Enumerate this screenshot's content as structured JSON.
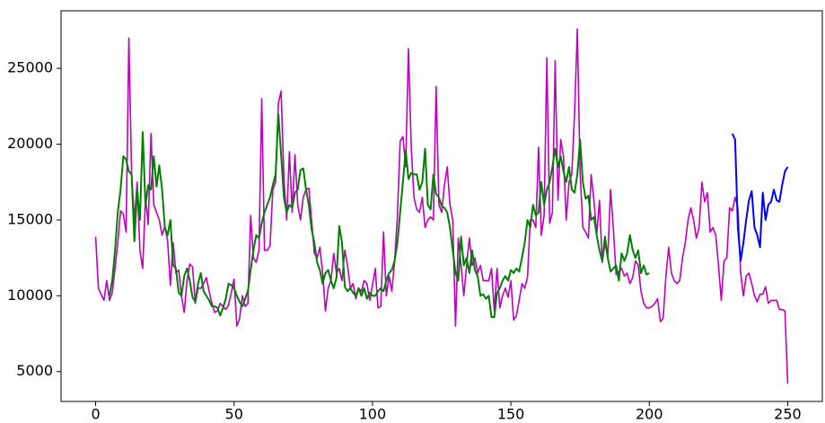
{
  "chart_data": {
    "type": "line",
    "x": [
      0,
      1,
      2,
      3,
      4,
      5,
      6,
      7,
      8,
      9,
      10,
      11,
      12,
      13,
      14,
      15,
      16,
      17,
      18,
      19,
      20,
      21,
      22,
      23,
      24,
      25,
      26,
      27,
      28,
      29,
      30,
      31,
      32,
      33,
      34,
      35,
      36,
      37,
      38,
      39,
      40,
      41,
      42,
      43,
      44,
      45,
      46,
      47,
      48,
      49,
      50,
      51,
      52,
      53,
      54,
      55,
      56,
      57,
      58,
      59,
      60,
      61,
      62,
      63,
      64,
      65,
      66,
      67,
      68,
      69,
      70,
      71,
      72,
      73,
      74,
      75,
      76,
      77,
      78,
      79,
      80,
      81,
      82,
      83,
      84,
      85,
      86,
      87,
      88,
      89,
      90,
      91,
      92,
      93,
      94,
      95,
      96,
      97,
      98,
      99,
      100,
      101,
      102,
      103,
      104,
      105,
      106,
      107,
      108,
      109,
      110,
      111,
      112,
      113,
      114,
      115,
      116,
      117,
      118,
      119,
      120,
      121,
      122,
      123,
      124,
      125,
      126,
      127,
      128,
      129,
      130,
      131,
      132,
      133,
      134,
      135,
      136,
      137,
      138,
      139,
      140,
      141,
      142,
      143,
      144,
      145,
      146,
      147,
      148,
      149,
      150,
      151,
      152,
      153,
      154,
      155,
      156,
      157,
      158,
      159,
      160,
      161,
      162,
      163,
      164,
      165,
      166,
      167,
      168,
      169,
      170,
      171,
      172,
      173,
      174,
      175,
      176,
      177,
      178,
      179,
      180,
      181,
      182,
      183,
      184,
      185,
      186,
      187,
      188,
      189,
      190,
      191,
      192,
      193,
      194,
      195,
      196,
      197,
      198,
      199,
      200,
      201,
      202,
      203,
      204,
      205,
      206,
      207,
      208,
      209,
      210,
      211,
      212,
      213,
      214,
      215,
      216,
      217,
      218,
      219,
      220,
      221,
      222,
      223,
      224,
      225,
      226,
      227,
      228,
      229,
      230,
      231,
      232,
      233,
      234,
      235,
      236,
      237,
      238,
      239,
      240,
      241,
      242,
      243,
      244,
      245,
      246,
      247,
      248,
      249,
      250
    ],
    "series": [
      {
        "color": "#bf00bf",
        "values": [
          13900,
          10500,
          10100,
          9700,
          11000,
          9700,
          10200,
          11800,
          13500,
          15600,
          15400,
          14200,
          27000,
          18000,
          15000,
          17500,
          13000,
          11800,
          16500,
          14700,
          20700,
          16000,
          15500,
          15000,
          14000,
          14600,
          13600,
          10700,
          13500,
          11500,
          11700,
          10000,
          8900,
          11000,
          12100,
          11900,
          9500,
          10500,
          10500,
          10800,
          11200,
          10300,
          9500,
          8900,
          9000,
          9500,
          9300,
          9100,
          9400,
          10200,
          11100,
          8000,
          8500,
          10000,
          9300,
          9500,
          15300,
          12500,
          12200,
          13000,
          23000,
          13000,
          13000,
          13300,
          17000,
          17500,
          22700,
          23500,
          17800,
          15000,
          19500,
          15500,
          19300,
          16000,
          15000,
          16500,
          17000,
          17100,
          15000,
          12800,
          12500,
          13200,
          11500,
          9000,
          10500,
          11000,
          12800,
          11500,
          11800,
          11000,
          13000,
          12000,
          10500,
          10800,
          9800,
          10500,
          10300,
          11000,
          10800,
          9700,
          10700,
          11800,
          9200,
          9300,
          14200,
          10000,
          11300,
          10300,
          12300,
          15200,
          20200,
          20500,
          18500,
          26300,
          19800,
          16500,
          15700,
          15500,
          16500,
          14500,
          15000,
          15200,
          15000,
          23800,
          16000,
          15500,
          17300,
          18500,
          16000,
          15000,
          8000,
          13800,
          12000,
          10000,
          12000,
          13800,
          12000,
          12500,
          11500,
          12000,
          11000,
          11000,
          11000,
          11800,
          9000,
          11800,
          9200,
          10000,
          10500,
          9900,
          11000,
          8400,
          8700,
          9700,
          10800,
          10500,
          11200,
          15000,
          15000,
          14500,
          19800,
          14000,
          15300,
          25700,
          14800,
          15500,
          25500,
          16300,
          20300,
          19200,
          15000,
          17500,
          18000,
          22000,
          27600,
          18200,
          14500,
          14200,
          13800,
          18000,
          16300,
          14000,
          16300,
          12200,
          13500,
          12500,
          17000,
          14500,
          11400,
          11600,
          11800,
          11300,
          11500,
          10800,
          11200,
          12300,
          12000,
          10300,
          9500,
          9200,
          9200,
          9300,
          9500,
          9800,
          8300,
          8500,
          11300,
          13200,
          11500,
          11000,
          10800,
          11000,
          12500,
          13500,
          15000,
          15800,
          15000,
          13800,
          14500,
          17500,
          16200,
          16800,
          14200,
          14500,
          14000,
          12000,
          9700,
          12300,
          12500,
          15800,
          15600,
          16500,
          15800,
          11500,
          10000,
          11300,
          11500,
          10800,
          10000,
          9600,
          10100,
          10100,
          10600,
          9500,
          9700,
          9700,
          9700,
          9100,
          9100,
          9000,
          4200
        ]
      },
      {
        "color": "#008000",
        "values": [
          null,
          null,
          null,
          null,
          null,
          10000,
          11000,
          13000,
          15500,
          17000,
          19200,
          19000,
          18200,
          18000,
          13600,
          17000,
          15000,
          20800,
          16000,
          17300,
          17000,
          19200,
          17200,
          18600,
          17000,
          14500,
          14000,
          15000,
          12000,
          11800,
          10200,
          10000,
          11300,
          11800,
          11000,
          9900,
          9600,
          10800,
          11500,
          10300,
          10000,
          9700,
          9300,
          9300,
          9200,
          8700,
          9200,
          9800,
          10800,
          10700,
          10500,
          10000,
          9600,
          9300,
          9800,
          10300,
          11700,
          13000,
          14000,
          13800,
          14800,
          15500,
          16000,
          16500,
          17300,
          18000,
          22000,
          19300,
          16500,
          15500,
          16000,
          15800,
          16800,
          17000,
          18300,
          18400,
          17000,
          16000,
          14400,
          13500,
          12200,
          11700,
          10800,
          11500,
          11700,
          11000,
          10500,
          11200,
          14600,
          13500,
          10600,
          10300,
          10500,
          10200,
          10000,
          10500,
          10000,
          10500,
          9800,
          10200,
          10000,
          10000,
          10300,
          10500,
          10300,
          11000,
          11500,
          11700,
          12300,
          13500,
          15500,
          17500,
          19600,
          17700,
          18100,
          18000,
          18000,
          17000,
          17500,
          19700,
          16000,
          15700,
          18000,
          16700,
          16500,
          15900,
          15800,
          15500,
          14500,
          13000,
          11500,
          11000,
          13900,
          12000,
          12500,
          11500,
          13000,
          11700,
          11300,
          10000,
          10100,
          9800,
          10000,
          8600,
          8600,
          10200,
          10500,
          11000,
          11300,
          11000,
          11700,
          11500,
          11800,
          11600,
          12500,
          13500,
          15000,
          14500,
          16000,
          15300,
          15500,
          17500,
          16000,
          17000,
          17500,
          18500,
          19700,
          18500,
          19200,
          18200,
          17500,
          18500,
          17000,
          16800,
          18000,
          20300,
          17500,
          16400,
          16600,
          15000,
          15200,
          14000,
          13000,
          12300,
          13900,
          12500,
          11600,
          11800,
          12000,
          11000,
          12800,
          12300,
          12800,
          14000,
          13000,
          12500,
          13000,
          11500,
          12000,
          11400,
          11500,
          null,
          null,
          null,
          null,
          null,
          null,
          null,
          null,
          null,
          null,
          null,
          null,
          null,
          null,
          null,
          null,
          null,
          null,
          null,
          null,
          null,
          null,
          null,
          null,
          null,
          null,
          null,
          null,
          null,
          null,
          null,
          null,
          null,
          null,
          null,
          null,
          null,
          null,
          null,
          null,
          null,
          null,
          null,
          null,
          null,
          null,
          null,
          null,
          null,
          null
        ]
      },
      {
        "color": "#0000ff",
        "values": [
          null,
          null,
          null,
          null,
          null,
          null,
          null,
          null,
          null,
          null,
          null,
          null,
          null,
          null,
          null,
          null,
          null,
          null,
          null,
          null,
          null,
          null,
          null,
          null,
          null,
          null,
          null,
          null,
          null,
          null,
          null,
          null,
          null,
          null,
          null,
          null,
          null,
          null,
          null,
          null,
          null,
          null,
          null,
          null,
          null,
          null,
          null,
          null,
          null,
          null,
          null,
          null,
          null,
          null,
          null,
          null,
          null,
          null,
          null,
          null,
          null,
          null,
          null,
          null,
          null,
          null,
          null,
          null,
          null,
          null,
          null,
          null,
          null,
          null,
          null,
          null,
          null,
          null,
          null,
          null,
          null,
          null,
          null,
          null,
          null,
          null,
          null,
          null,
          null,
          null,
          null,
          null,
          null,
          null,
          null,
          null,
          null,
          null,
          null,
          null,
          null,
          null,
          null,
          null,
          null,
          null,
          null,
          null,
          null,
          null,
          null,
          null,
          null,
          null,
          null,
          null,
          null,
          null,
          null,
          null,
          null,
          null,
          null,
          null,
          null,
          null,
          null,
          null,
          null,
          null,
          null,
          null,
          null,
          null,
          null,
          null,
          null,
          null,
          null,
          null,
          null,
          null,
          null,
          null,
          null,
          null,
          null,
          null,
          null,
          null,
          null,
          null,
          null,
          null,
          null,
          null,
          null,
          null,
          null,
          null,
          null,
          null,
          null,
          null,
          null,
          null,
          null,
          null,
          null,
          null,
          null,
          null,
          null,
          null,
          null,
          null,
          null,
          null,
          null,
          null,
          null,
          null,
          null,
          null,
          null,
          null,
          null,
          null,
          null,
          null,
          null,
          null,
          null,
          null,
          null,
          null,
          null,
          null,
          null,
          null,
          null,
          null,
          null,
          null,
          null,
          null,
          null,
          null,
          null,
          null,
          null,
          null,
          null,
          null,
          null,
          null,
          null,
          null,
          null,
          null,
          null,
          null,
          null,
          null,
          null,
          null,
          null,
          null,
          null,
          null,
          20700,
          20300,
          14500,
          12300,
          13500,
          15000,
          16300,
          16900,
          14500,
          14000,
          13200,
          16800,
          15000,
          16000,
          16200,
          17000,
          16300,
          16200,
          17300,
          18200,
          18500
        ]
      }
    ],
    "xlim": [
      -12.5,
      262.5
    ],
    "ylim": [
      3030,
      28800
    ],
    "xticks": [
      0,
      50,
      100,
      150,
      200,
      250
    ],
    "yticks": [
      5000,
      10000,
      15000,
      20000,
      25000
    ],
    "grid": false
  }
}
